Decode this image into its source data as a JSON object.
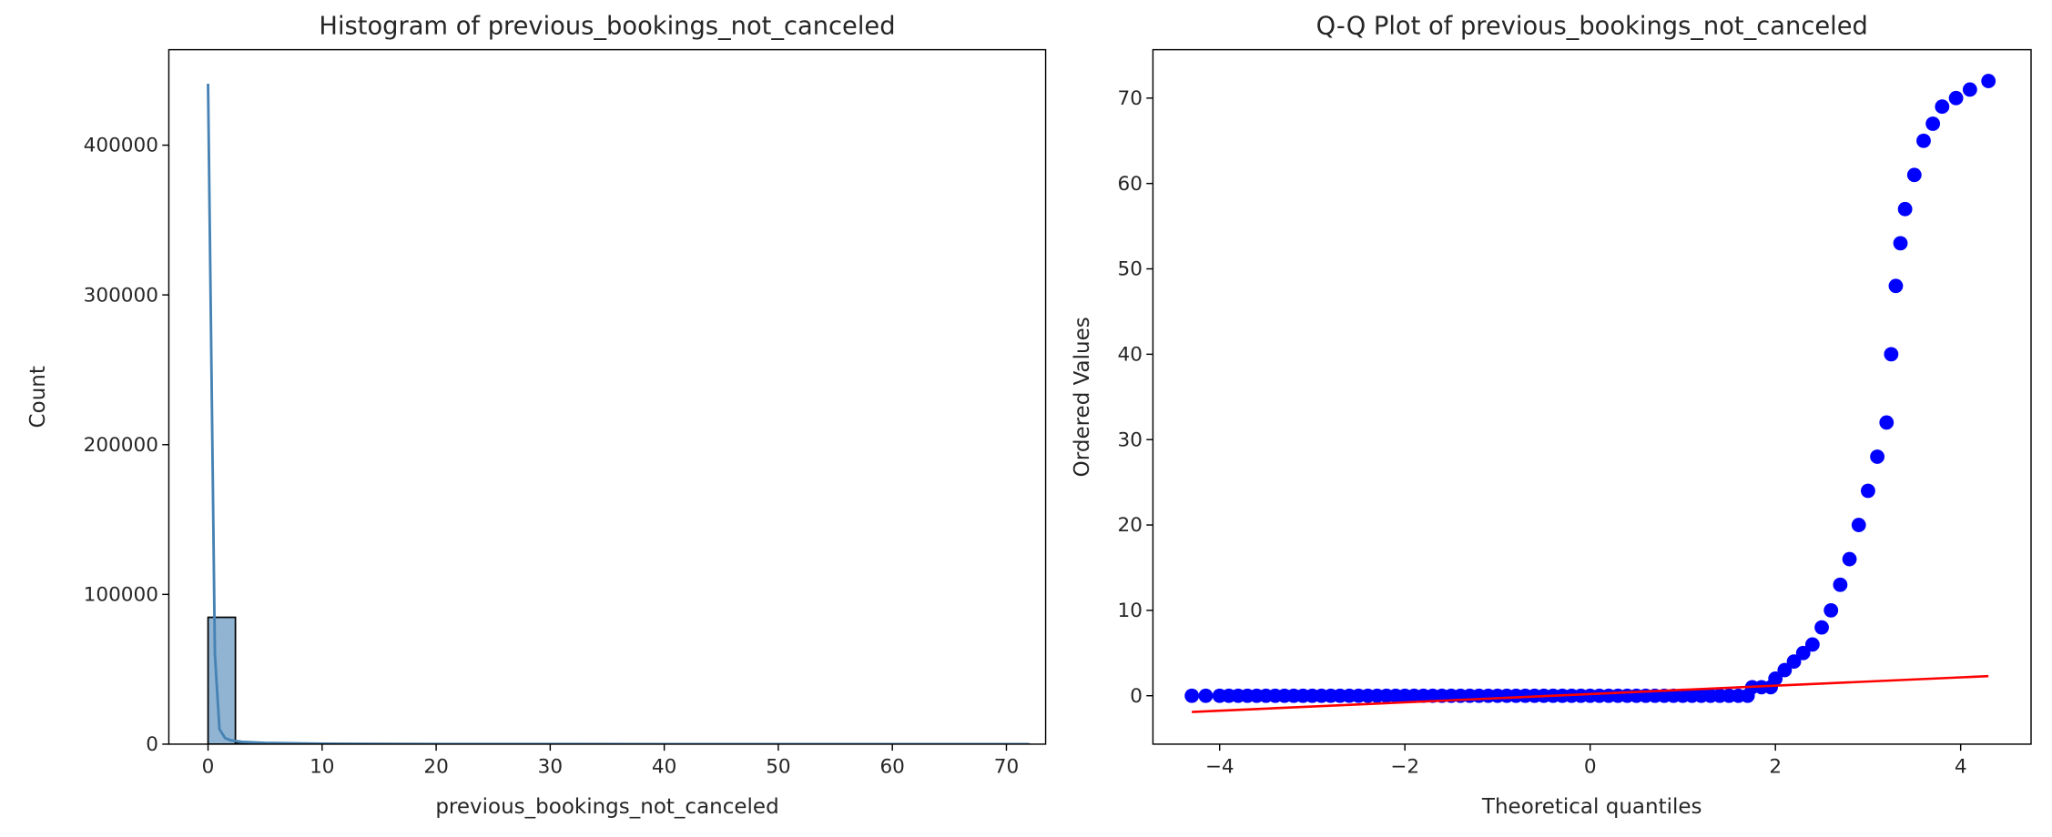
{
  "chart_data": [
    {
      "type": "histogram",
      "title": "Histogram of previous_bookings_not_canceled",
      "xlabel": "previous_bookings_not_canceled",
      "ylabel": "Count",
      "bins": [
        0,
        2.4,
        4.8,
        7.2,
        9.6,
        12,
        14.4,
        16.8,
        19.2,
        21.6,
        24,
        26.4,
        28.8,
        31.2,
        33.6,
        36,
        38.4,
        40.8,
        43.2,
        45.6,
        48,
        50.4,
        52.8,
        55.2,
        57.6,
        60,
        62.4,
        64.8,
        67.2,
        69.6,
        72
      ],
      "counts": [
        84700,
        1200,
        400,
        250,
        180,
        120,
        90,
        70,
        60,
        40,
        30,
        25,
        20,
        15,
        12,
        10,
        9,
        8,
        7,
        6,
        5,
        5,
        4,
        4,
        3,
        3,
        3,
        2,
        2,
        2
      ],
      "color": "#4682b4",
      "kde": {
        "x": [
          0,
          0.3,
          0.6,
          1,
          1.5,
          2,
          3,
          5,
          10,
          20,
          40,
          72
        ],
        "values": [
          441000,
          250000,
          60000,
          10000,
          4000,
          2500,
          1500,
          800,
          300,
          100,
          30,
          5
        ],
        "color": "#4682b4"
      },
      "xlim": [
        -3.44,
        73.44
      ],
      "xticks": [
        0,
        10,
        20,
        30,
        40,
        50,
        60,
        70
      ],
      "ylim": [
        0,
        463755
      ],
      "yticks": [
        0,
        100000,
        200000,
        300000,
        400000
      ]
    },
    {
      "type": "scatter",
      "title": "Q-Q Plot of previous_bookings_not_canceled",
      "xlabel": "Theoretical quantiles",
      "ylabel": "Ordered Values",
      "series": [
        {
          "color": "#0000ff",
          "x": [
            -4.3,
            -4.15,
            -4.0,
            -3.9,
            -3.8,
            -3.7,
            -3.6,
            -3.5,
            -3.4,
            -3.3,
            -3.2,
            -3.1,
            -3.0,
            -2.9,
            -2.8,
            -2.7,
            -2.6,
            -2.5,
            -2.4,
            -2.3,
            -2.2,
            -2.1,
            -2.0,
            -1.9,
            -1.8,
            -1.7,
            -1.6,
            -1.5,
            -1.4,
            -1.3,
            -1.2,
            -1.1,
            -1.0,
            -0.9,
            -0.8,
            -0.7,
            -0.6,
            -0.5,
            -0.4,
            -0.3,
            -0.2,
            -0.1,
            0,
            0.1,
            0.2,
            0.3,
            0.4,
            0.5,
            0.6,
            0.7,
            0.8,
            0.9,
            1.0,
            1.1,
            1.2,
            1.3,
            1.4,
            1.5,
            1.6,
            1.7,
            1.75,
            1.85,
            1.95,
            2.0,
            2.1,
            2.2,
            2.3,
            2.4,
            2.5,
            2.6,
            2.7,
            2.8,
            2.9,
            3.0,
            3.1,
            3.2,
            3.25,
            3.3,
            3.35,
            3.4,
            3.5,
            3.6,
            3.7,
            3.8,
            3.95,
            4.1,
            4.3
          ],
          "values": [
            0,
            0,
            0,
            0,
            0,
            0,
            0,
            0,
            0,
            0,
            0,
            0,
            0,
            0,
            0,
            0,
            0,
            0,
            0,
            0,
            0,
            0,
            0,
            0,
            0,
            0,
            0,
            0,
            0,
            0,
            0,
            0,
            0,
            0,
            0,
            0,
            0,
            0,
            0,
            0,
            0,
            0,
            0,
            0,
            0,
            0,
            0,
            0,
            0,
            0,
            0,
            0,
            0,
            0,
            0,
            0,
            0,
            0,
            0,
            0,
            1,
            1,
            1,
            2,
            3,
            4,
            5,
            6,
            8,
            10,
            13,
            16,
            20,
            24,
            28,
            32,
            40,
            48,
            53,
            57,
            61,
            65,
            67,
            69,
            70,
            71,
            72
          ]
        }
      ],
      "fit": {
        "x": [
          -4.3,
          4.3
        ],
        "values": [
          -1.9,
          2.3
        ],
        "color": "#ff0000"
      },
      "xlim": [
        -4.72,
        4.76
      ],
      "xticks": [
        {
          "value": -4,
          "label": "−4"
        },
        {
          "value": -2,
          "label": "−2"
        },
        0,
        2,
        4
      ],
      "ylim": [
        -5.67,
        75.67
      ],
      "yticks": [
        0,
        10,
        20,
        30,
        40,
        50,
        60,
        70
      ]
    }
  ]
}
